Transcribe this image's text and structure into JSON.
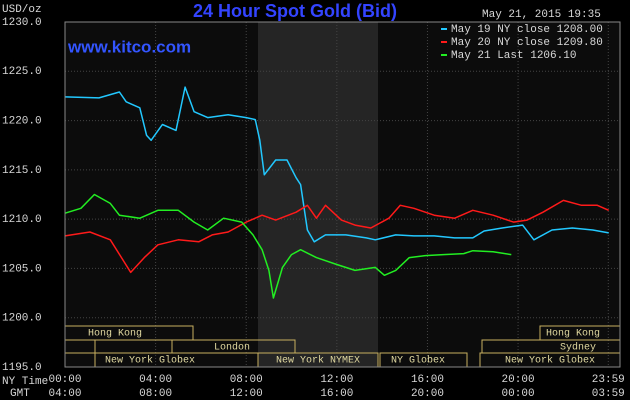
{
  "chart_data": {
    "type": "line",
    "title": "24 Hour Spot Gold (Bid)",
    "timestamp": "May 21, 2015 19:35",
    "y_label": "USD/oz",
    "watermark": "www.kitco.com",
    "x_label": "NY Time",
    "x2_label": "GMT",
    "xlim": [
      0,
      24.5
    ],
    "xticks": [
      {
        "value": 0,
        "label": "00:00"
      },
      {
        "value": 4,
        "label": "04:00"
      },
      {
        "value": 8,
        "label": "08:00"
      },
      {
        "value": 12,
        "label": "12:00"
      },
      {
        "value": 16,
        "label": "16:00"
      },
      {
        "value": 20,
        "label": "20:00"
      },
      {
        "value": 23.983,
        "label": "23:59"
      }
    ],
    "gmt_tick_labels": [
      "04:00",
      "08:00",
      "12:00",
      "16:00",
      "20:00",
      "00:00",
      "03:59"
    ],
    "ylim": [
      1195,
      1230
    ],
    "yticks": [
      {
        "value": 1195,
        "label": "1195.0"
      },
      {
        "value": 1200,
        "label": "1200.0"
      },
      {
        "value": 1205,
        "label": "1205.0"
      },
      {
        "value": 1210,
        "label": "1210.0"
      },
      {
        "value": 1215,
        "label": "1215.0"
      },
      {
        "value": 1220,
        "label": "1220.0"
      },
      {
        "value": 1225,
        "label": "1225.0"
      },
      {
        "value": 1230,
        "label": "1230.0"
      }
    ],
    "grid": true,
    "sessions": [
      "Hong Kong",
      "Hong Kong",
      "London",
      "Sydney",
      "New York Globex",
      "New York NYMEX",
      "NY Globex",
      "New York Globex"
    ],
    "series": [
      {
        "name": "May 19 NY close 1208.00",
        "color": "#22c8ff",
        "x": [
          0,
          1.5,
          2.4,
          2.7,
          3.3,
          3.6,
          3.8,
          4.3,
          4.9,
          5.3,
          5.7,
          6.3,
          7.2,
          8.0,
          8.4,
          8.6,
          8.8,
          9.3,
          9.8,
          10.2,
          10.4,
          10.7,
          11.0,
          11.5,
          12.4,
          13.3,
          13.7,
          14.6,
          15.4,
          16.3,
          17.2,
          18.0,
          18.5,
          19.3,
          20.2,
          20.7,
          21.5,
          22.4,
          23.3,
          24.0
        ],
        "values": [
          1222.4,
          1222.3,
          1222.9,
          1221.9,
          1221.3,
          1218.5,
          1218.0,
          1219.6,
          1219.0,
          1223.4,
          1220.9,
          1220.3,
          1220.6,
          1220.3,
          1220.1,
          1218.0,
          1214.5,
          1216.0,
          1216.0,
          1214.2,
          1213.5,
          1208.9,
          1207.7,
          1208.4,
          1208.4,
          1208.1,
          1207.9,
          1208.4,
          1208.3,
          1208.3,
          1208.1,
          1208.1,
          1208.8,
          1209.1,
          1209.4,
          1207.9,
          1208.9,
          1209.1,
          1208.9,
          1208.6
        ]
      },
      {
        "name": "May 20 NY close 1209.80",
        "color": "#ff1a1a",
        "x": [
          0,
          1.1,
          2.0,
          2.6,
          2.9,
          3.5,
          4.1,
          5.0,
          5.9,
          6.5,
          7.2,
          8.0,
          8.7,
          9.3,
          10.2,
          10.7,
          11.1,
          11.5,
          12.2,
          12.8,
          13.5,
          14.3,
          14.8,
          15.4,
          16.3,
          17.2,
          18.0,
          18.9,
          19.8,
          20.4,
          21.1,
          22.0,
          22.8,
          23.5,
          24.0
        ],
        "values": [
          1208.3,
          1208.7,
          1207.9,
          1205.7,
          1204.6,
          1206.1,
          1207.4,
          1207.9,
          1207.7,
          1208.4,
          1208.7,
          1209.7,
          1210.4,
          1209.9,
          1210.7,
          1211.4,
          1210.1,
          1211.4,
          1209.9,
          1209.4,
          1209.1,
          1210.1,
          1211.4,
          1211.1,
          1210.4,
          1210.1,
          1210.9,
          1210.4,
          1209.7,
          1209.9,
          1210.7,
          1211.9,
          1211.4,
          1211.4,
          1210.9
        ]
      },
      {
        "name": "May 21 Last 1206.10",
        "color": "#22ee22",
        "x": [
          0,
          0.7,
          1.3,
          2.0,
          2.4,
          3.3,
          4.1,
          5.0,
          5.7,
          6.3,
          7.0,
          7.8,
          8.3,
          8.7,
          9.0,
          9.2,
          9.6,
          10.0,
          10.4,
          11.1,
          12.0,
          12.8,
          13.7,
          14.1,
          14.6,
          15.2,
          15.9,
          16.7,
          17.6,
          18.0,
          18.9,
          19.7
        ],
        "values": [
          1210.6,
          1211.1,
          1212.5,
          1211.6,
          1210.4,
          1210.1,
          1210.9,
          1210.9,
          1209.7,
          1208.9,
          1210.1,
          1209.7,
          1208.4,
          1206.9,
          1204.8,
          1202.0,
          1205.1,
          1206.4,
          1206.9,
          1206.1,
          1205.4,
          1204.8,
          1205.1,
          1204.3,
          1204.8,
          1206.1,
          1206.3,
          1206.4,
          1206.5,
          1206.8,
          1206.7,
          1206.4
        ]
      }
    ]
  }
}
